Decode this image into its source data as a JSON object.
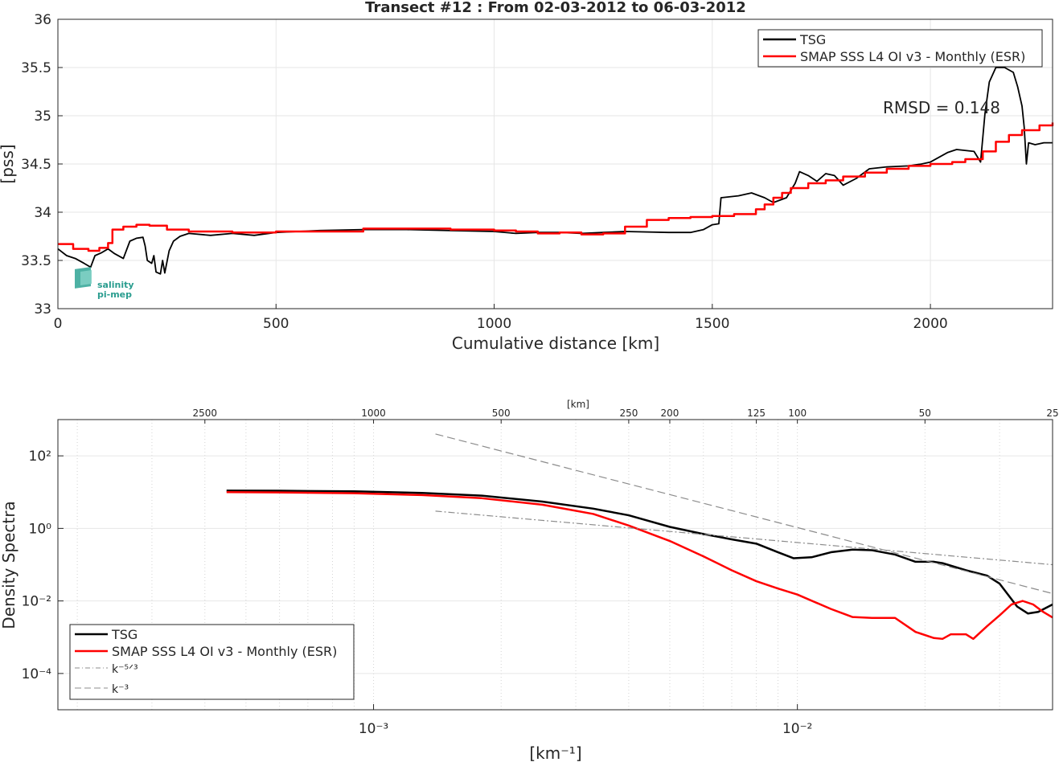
{
  "chart_data": [
    {
      "type": "line",
      "title": "Transect #12 : From 02-03-2012 to 06-03-2012",
      "xlabel": "Cumulative distance [km]",
      "ylabel": "[pss]",
      "xlim": [
        0,
        2280
      ],
      "ylim": [
        33,
        36
      ],
      "x_ticks": [
        0,
        500,
        1000,
        1500,
        2000
      ],
      "y_ticks": [
        33,
        33.5,
        34,
        34.5,
        35,
        35.5,
        36
      ],
      "x_tick_labels": [
        "0",
        "500",
        "1000",
        "1500",
        "2000"
      ],
      "y_tick_labels": [
        "33",
        "33.5",
        "34",
        "34.5",
        "35",
        "35.5",
        "36"
      ],
      "grid": true,
      "legend_position": "top-right",
      "annotation": "RMSD = 0.148",
      "logo": {
        "line1": "salinity",
        "line2": "pi-mep"
      },
      "series": [
        {
          "name": "TSG",
          "color": "#000000",
          "points": [
            [
              0,
              33.62
            ],
            [
              20,
              33.55
            ],
            [
              40,
              33.52
            ],
            [
              60,
              33.47
            ],
            [
              75,
              33.43
            ],
            [
              85,
              33.55
            ],
            [
              100,
              33.58
            ],
            [
              115,
              33.62
            ],
            [
              130,
              33.57
            ],
            [
              150,
              33.52
            ],
            [
              165,
              33.7
            ],
            [
              180,
              33.73
            ],
            [
              195,
              33.74
            ],
            [
              200,
              33.65
            ],
            [
              205,
              33.5
            ],
            [
              215,
              33.47
            ],
            [
              220,
              33.55
            ],
            [
              225,
              33.38
            ],
            [
              235,
              33.36
            ],
            [
              240,
              33.5
            ],
            [
              245,
              33.37
            ],
            [
              255,
              33.6
            ],
            [
              265,
              33.7
            ],
            [
              280,
              33.75
            ],
            [
              300,
              33.78
            ],
            [
              350,
              33.76
            ],
            [
              400,
              33.78
            ],
            [
              450,
              33.76
            ],
            [
              500,
              33.79
            ],
            [
              550,
              33.8
            ],
            [
              600,
              33.81
            ],
            [
              700,
              33.82
            ],
            [
              800,
              33.82
            ],
            [
              900,
              33.81
            ],
            [
              1000,
              33.8
            ],
            [
              1050,
              33.78
            ],
            [
              1100,
              33.79
            ],
            [
              1150,
              33.79
            ],
            [
              1200,
              33.78
            ],
            [
              1250,
              33.79
            ],
            [
              1300,
              33.8
            ],
            [
              1400,
              33.79
            ],
            [
              1450,
              33.79
            ],
            [
              1480,
              33.82
            ],
            [
              1500,
              33.87
            ],
            [
              1515,
              33.88
            ],
            [
              1520,
              34.15
            ],
            [
              1560,
              34.17
            ],
            [
              1590,
              34.2
            ],
            [
              1620,
              34.15
            ],
            [
              1640,
              34.1
            ],
            [
              1670,
              34.15
            ],
            [
              1690,
              34.3
            ],
            [
              1700,
              34.42
            ],
            [
              1720,
              34.38
            ],
            [
              1740,
              34.32
            ],
            [
              1760,
              34.4
            ],
            [
              1780,
              34.38
            ],
            [
              1790,
              34.33
            ],
            [
              1800,
              34.28
            ],
            [
              1830,
              34.35
            ],
            [
              1860,
              34.45
            ],
            [
              1900,
              34.47
            ],
            [
              1950,
              34.48
            ],
            [
              1980,
              34.5
            ],
            [
              2000,
              34.52
            ],
            [
              2040,
              34.62
            ],
            [
              2060,
              34.65
            ],
            [
              2100,
              34.63
            ],
            [
              2115,
              34.52
            ],
            [
              2125,
              35.02
            ],
            [
              2135,
              35.35
            ],
            [
              2150,
              35.5
            ],
            [
              2170,
              35.5
            ],
            [
              2190,
              35.45
            ],
            [
              2200,
              35.3
            ],
            [
              2210,
              35.1
            ],
            [
              2215,
              34.88
            ],
            [
              2220,
              34.5
            ],
            [
              2225,
              34.72
            ],
            [
              2240,
              34.7
            ],
            [
              2260,
              34.72
            ],
            [
              2280,
              34.72
            ]
          ]
        },
        {
          "name": "SMAP SSS L4 OI v3 - Monthly (ESR)",
          "color": "#ff0000",
          "points": [
            [
              0,
              33.67
            ],
            [
              35,
              33.62
            ],
            [
              70,
              33.6
            ],
            [
              95,
              33.63
            ],
            [
              115,
              33.68
            ],
            [
              125,
              33.82
            ],
            [
              150,
              33.85
            ],
            [
              180,
              33.87
            ],
            [
              210,
              33.86
            ],
            [
              250,
              33.82
            ],
            [
              300,
              33.8
            ],
            [
              400,
              33.79
            ],
            [
              500,
              33.8
            ],
            [
              600,
              33.8
            ],
            [
              700,
              33.83
            ],
            [
              800,
              33.83
            ],
            [
              900,
              33.82
            ],
            [
              1000,
              33.81
            ],
            [
              1050,
              33.8
            ],
            [
              1100,
              33.78
            ],
            [
              1150,
              33.79
            ],
            [
              1200,
              33.77
            ],
            [
              1250,
              33.78
            ],
            [
              1300,
              33.85
            ],
            [
              1350,
              33.92
            ],
            [
              1400,
              33.94
            ],
            [
              1450,
              33.95
            ],
            [
              1500,
              33.96
            ],
            [
              1550,
              33.98
            ],
            [
              1600,
              34.03
            ],
            [
              1620,
              34.08
            ],
            [
              1640,
              34.15
            ],
            [
              1660,
              34.2
            ],
            [
              1680,
              34.25
            ],
            [
              1720,
              34.3
            ],
            [
              1760,
              34.33
            ],
            [
              1800,
              34.37
            ],
            [
              1850,
              34.41
            ],
            [
              1900,
              34.45
            ],
            [
              1950,
              34.48
            ],
            [
              2000,
              34.5
            ],
            [
              2050,
              34.52
            ],
            [
              2080,
              34.55
            ],
            [
              2120,
              34.63
            ],
            [
              2150,
              34.73
            ],
            [
              2180,
              34.8
            ],
            [
              2210,
              34.85
            ],
            [
              2250,
              34.9
            ],
            [
              2280,
              34.93
            ]
          ]
        }
      ]
    },
    {
      "type": "line",
      "xlabel": "[km⁻¹]",
      "ylabel": "Density Spectra",
      "x_scale": "log",
      "y_scale": "log",
      "xlim": [
        0.00018,
        0.04
      ],
      "ylim": [
        1e-05,
        1000
      ],
      "x_ticks": [
        0.001,
        0.01
      ],
      "x_tick_labels": [
        "10⁻³",
        "10⁻²"
      ],
      "y_ticks": [
        0.0001,
        0.01,
        1,
        100
      ],
      "y_tick_labels": [
        "10⁻⁴",
        "10⁻²",
        "10⁰",
        "10²"
      ],
      "top_axis_label": "[km]",
      "top_ticks": [
        2500,
        1000,
        500,
        250,
        200,
        125,
        100,
        50,
        25
      ],
      "top_tick_labels": [
        "2500",
        "1000",
        "500",
        "250",
        "200",
        "125",
        "100",
        "50",
        "25"
      ],
      "grid": true,
      "legend_position": "bottom-left",
      "series": [
        {
          "name": "TSG",
          "color": "#000000",
          "points": [
            [
              0.00045,
              11
            ],
            [
              0.0006,
              10.9
            ],
            [
              0.0009,
              10.5
            ],
            [
              0.0013,
              9.5
            ],
            [
              0.0018,
              8
            ],
            [
              0.0025,
              5.5
            ],
            [
              0.0033,
              3.5
            ],
            [
              0.004,
              2.3
            ],
            [
              0.005,
              1.1
            ],
            [
              0.006,
              0.7
            ],
            [
              0.007,
              0.5
            ],
            [
              0.008,
              0.38
            ],
            [
              0.009,
              0.22
            ],
            [
              0.0098,
              0.15
            ],
            [
              0.0108,
              0.16
            ],
            [
              0.012,
              0.22
            ],
            [
              0.0135,
              0.26
            ],
            [
              0.015,
              0.25
            ],
            [
              0.017,
              0.19
            ],
            [
              0.019,
              0.12
            ],
            [
              0.021,
              0.12
            ],
            [
              0.022,
              0.11
            ],
            [
              0.025,
              0.07
            ],
            [
              0.028,
              0.05
            ],
            [
              0.03,
              0.03
            ],
            [
              0.033,
              0.007
            ],
            [
              0.035,
              0.0045
            ],
            [
              0.037,
              0.005
            ],
            [
              0.04,
              0.008
            ]
          ]
        },
        {
          "name": "SMAP SSS L4 OI v3 - Monthly (ESR)",
          "color": "#ff0000",
          "points": [
            [
              0.00045,
              10
            ],
            [
              0.0006,
              9.8
            ],
            [
              0.0009,
              9.3
            ],
            [
              0.0013,
              8.3
            ],
            [
              0.0018,
              6.8
            ],
            [
              0.0025,
              4.5
            ],
            [
              0.0033,
              2.5
            ],
            [
              0.004,
              1.2
            ],
            [
              0.005,
              0.45
            ],
            [
              0.006,
              0.17
            ],
            [
              0.007,
              0.07
            ],
            [
              0.008,
              0.035
            ],
            [
              0.009,
              0.022
            ],
            [
              0.01,
              0.015
            ],
            [
              0.012,
              0.006
            ],
            [
              0.0135,
              0.0036
            ],
            [
              0.015,
              0.0034
            ],
            [
              0.017,
              0.0034
            ],
            [
              0.019,
              0.0014
            ],
            [
              0.021,
              0.00095
            ],
            [
              0.022,
              0.0009
            ],
            [
              0.023,
              0.0012
            ],
            [
              0.025,
              0.0012
            ],
            [
              0.026,
              0.0009
            ],
            [
              0.028,
              0.002
            ],
            [
              0.03,
              0.004
            ],
            [
              0.032,
              0.008
            ],
            [
              0.034,
              0.01
            ],
            [
              0.036,
              0.008
            ],
            [
              0.038,
              0.005
            ],
            [
              0.04,
              0.0035
            ]
          ]
        },
        {
          "name": "k⁻⁵ᐟ³",
          "color": "#8c8c8c",
          "dash": "dashdot",
          "points": [
            [
              0.0014,
              3
            ],
            [
              0.04,
              0.1
            ]
          ]
        },
        {
          "name": "k⁻³",
          "color": "#8c8c8c",
          "dash": "dashed",
          "points": [
            [
              0.0014,
              400
            ],
            [
              0.04,
              0.016
            ]
          ]
        }
      ]
    }
  ]
}
